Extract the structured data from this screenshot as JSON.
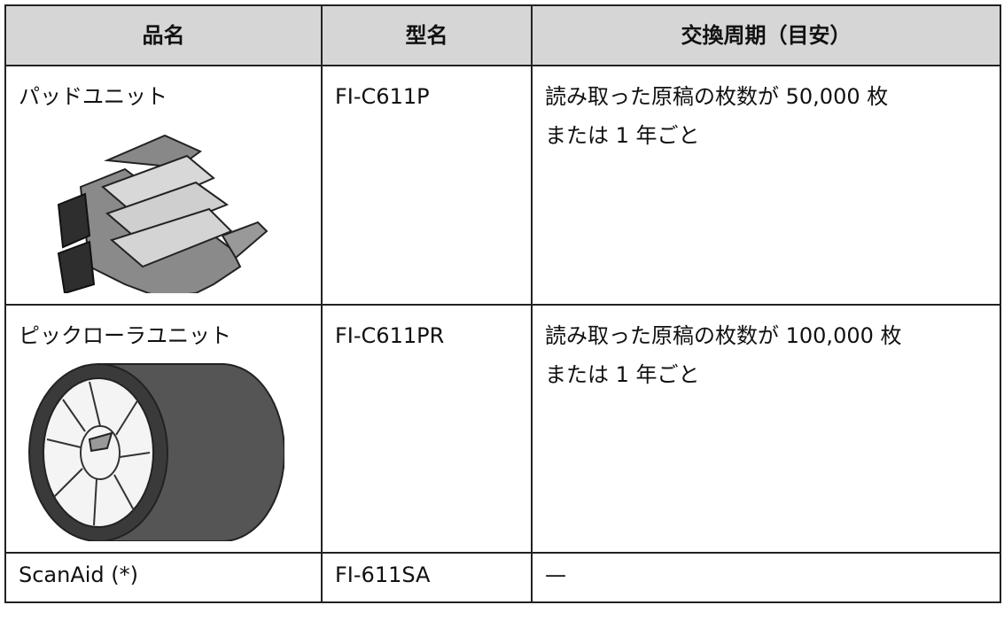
{
  "table": {
    "header": [
      "品名",
      "型名",
      "交換周期（目安）"
    ],
    "rows": [
      [
        "パッドユニット",
        "FI-C611P",
        [
          "読み取った原稿の枚数が 50,000 枚",
          "または 1 年ごと"
        ]
      ],
      [
        "ピックローラユニット",
        "FI-C611PR",
        [
          "読み取った原稿の枚数が 100,000 枚",
          "または 1 年ごと"
        ]
      ],
      [
        "ScanAid (*)",
        "FI-611SA",
        [
          "—"
        ]
      ]
    ]
  }
}
